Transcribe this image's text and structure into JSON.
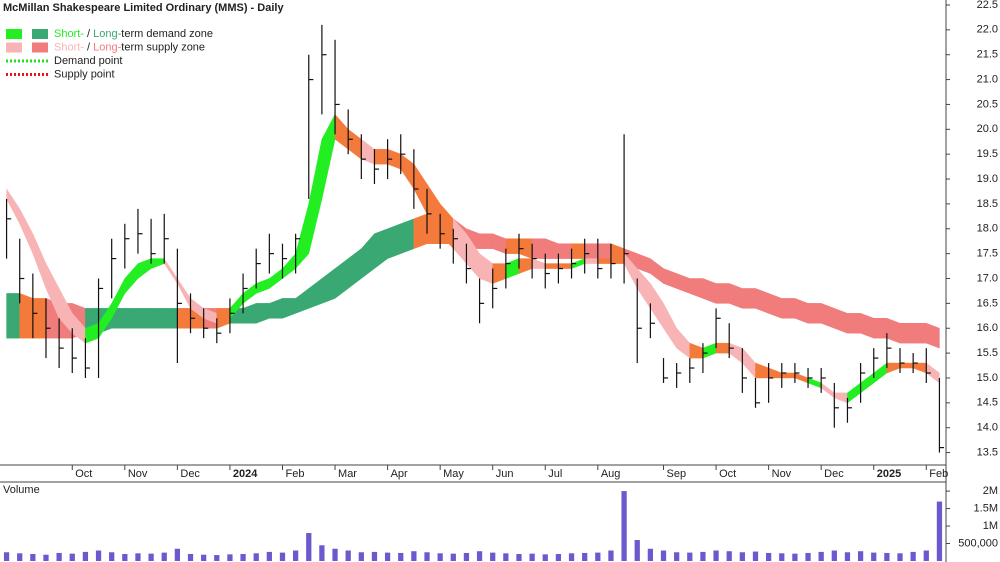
{
  "chart_data": {
    "type": "candlestick",
    "title": "McMillan Shakespeare Limited Ordinary (MMS) - Daily",
    "categories": [
      null,
      null,
      null,
      null,
      null,
      "Oct",
      null,
      null,
      null,
      "Nov",
      null,
      null,
      null,
      "Dec",
      null,
      null,
      null,
      "2024",
      null,
      null,
      null,
      "Feb",
      null,
      null,
      null,
      "Mar",
      null,
      null,
      null,
      "Apr",
      null,
      null,
      null,
      "May",
      null,
      null,
      null,
      "Jun",
      null,
      null,
      null,
      "Jul",
      null,
      null,
      null,
      "Aug",
      null,
      null,
      null,
      null,
      "Sep",
      null,
      null,
      null,
      "Oct",
      null,
      null,
      null,
      "Nov",
      null,
      null,
      null,
      "Dec",
      null,
      null,
      null,
      "2025",
      null,
      null,
      null,
      "Feb",
      null
    ],
    "high": [
      18.6,
      17.8,
      17.1,
      16.6,
      16.2,
      16.0,
      15.8,
      17.0,
      17.8,
      18.1,
      18.4,
      18.2,
      18.3,
      17.6,
      16.7,
      16.4,
      16.2,
      16.6,
      17.1,
      17.6,
      17.9,
      17.7,
      17.9,
      21.5,
      22.1,
      21.8,
      20.4,
      19.9,
      19.6,
      19.8,
      19.9,
      19.6,
      18.8,
      18.3,
      18.0,
      17.7,
      17.0,
      17.2,
      17.6,
      17.9,
      17.7,
      17.5,
      17.5,
      17.6,
      17.8,
      17.8,
      17.7,
      19.9,
      17.0,
      16.5,
      15.4,
      15.3,
      15.4,
      15.7,
      16.4,
      16.1,
      15.6,
      15.0,
      15.3,
      15.3,
      15.3,
      15.2,
      15.2,
      14.9,
      14.6,
      15.3,
      15.6,
      15.9,
      15.6,
      15.5,
      15.6,
      15.0
    ],
    "low": [
      17.4,
      16.5,
      15.8,
      15.4,
      15.2,
      15.1,
      15.0,
      15.0,
      16.6,
      17.2,
      17.5,
      17.3,
      17.3,
      15.3,
      15.9,
      15.8,
      15.7,
      15.9,
      16.3,
      16.8,
      17.1,
      17.0,
      17.1,
      18.6,
      20.3,
      19.9,
      19.5,
      19.0,
      18.9,
      19.0,
      19.1,
      18.4,
      17.9,
      17.6,
      17.3,
      16.9,
      16.1,
      16.4,
      16.8,
      17.2,
      17.0,
      16.8,
      16.9,
      17.0,
      17.1,
      17.0,
      17.0,
      16.9,
      15.3,
      15.8,
      14.9,
      14.8,
      14.9,
      15.1,
      15.6,
      15.4,
      14.7,
      14.4,
      14.5,
      14.8,
      14.9,
      14.8,
      14.7,
      14.0,
      14.1,
      14.5,
      15.0,
      15.2,
      15.1,
      15.1,
      14.9,
      13.5
    ],
    "close": [
      18.2,
      17.0,
      16.3,
      16.0,
      15.6,
      15.4,
      15.2,
      16.8,
      17.4,
      17.8,
      17.9,
      17.5,
      17.8,
      16.5,
      16.2,
      16.0,
      15.9,
      16.3,
      16.8,
      17.3,
      17.5,
      17.4,
      17.8,
      21.0,
      21.5,
      20.5,
      19.8,
      19.4,
      19.2,
      19.4,
      19.5,
      18.8,
      18.3,
      17.9,
      17.8,
      17.2,
      16.5,
      16.8,
      17.3,
      17.6,
      17.4,
      17.1,
      17.2,
      17.3,
      17.5,
      17.2,
      17.3,
      17.5,
      16.0,
      16.1,
      15.0,
      15.1,
      15.2,
      15.5,
      16.2,
      15.6,
      15.0,
      14.5,
      15.0,
      15.1,
      15.1,
      15.0,
      15.0,
      14.4,
      14.4,
      15.1,
      15.4,
      15.6,
      15.3,
      15.3,
      15.1,
      13.6
    ],
    "color": "#111111",
    "ylim": [
      13.25,
      22.6
    ],
    "yticks": [
      13.5,
      {
        "value": 14,
        "label": "14.0"
      },
      14.5,
      {
        "value": 15,
        "label": "15.0"
      },
      15.5,
      {
        "value": 16,
        "label": "16.0"
      },
      16.5,
      {
        "value": 17,
        "label": "17.0"
      },
      17.5,
      {
        "value": 18,
        "label": "18.0"
      },
      18.5,
      {
        "value": 19,
        "label": "19.0"
      },
      19.5,
      {
        "value": 20,
        "label": "20.0"
      },
      20.5,
      {
        "value": 21,
        "label": "21.0"
      },
      21.5,
      {
        "value": 22,
        "label": "22.0"
      },
      22.5
    ],
    "grid": false,
    "long_zone": {
      "upper": [
        16.7,
        16.7,
        16.6,
        16.6,
        16.5,
        16.5,
        16.4,
        16.4,
        16.4,
        16.4,
        16.4,
        16.4,
        16.4,
        16.4,
        16.4,
        16.4,
        16.4,
        16.4,
        16.4,
        16.5,
        16.5,
        16.6,
        16.6,
        16.8,
        17.0,
        17.2,
        17.4,
        17.6,
        17.9,
        18.0,
        18.1,
        18.2,
        18.3,
        18.3,
        18.2,
        18.0,
        17.9,
        17.9,
        17.8,
        17.8,
        17.8,
        17.8,
        17.7,
        17.7,
        17.7,
        17.7,
        17.7,
        17.6,
        17.5,
        17.4,
        17.2,
        17.1,
        17.0,
        17.0,
        16.9,
        16.9,
        16.8,
        16.8,
        16.7,
        16.6,
        16.6,
        16.5,
        16.5,
        16.4,
        16.3,
        16.3,
        16.2,
        16.2,
        16.1,
        16.1,
        16.1,
        16.0
      ],
      "lower": [
        15.8,
        15.8,
        15.8,
        15.8,
        15.8,
        15.8,
        15.9,
        15.9,
        16.0,
        16.0,
        16.0,
        16.0,
        16.0,
        16.0,
        16.0,
        16.0,
        16.0,
        16.1,
        16.1,
        16.1,
        16.2,
        16.2,
        16.3,
        16.4,
        16.5,
        16.6,
        16.8,
        17.0,
        17.2,
        17.4,
        17.5,
        17.6,
        17.7,
        17.7,
        17.7,
        17.6,
        17.6,
        17.6,
        17.5,
        17.5,
        17.4,
        17.4,
        17.4,
        17.4,
        17.4,
        17.4,
        17.4,
        17.3,
        17.2,
        17.1,
        16.9,
        16.8,
        16.7,
        16.6,
        16.5,
        16.5,
        16.4,
        16.4,
        16.3,
        16.2,
        16.2,
        16.1,
        16.1,
        16.0,
        15.9,
        15.9,
        15.8,
        15.8,
        15.7,
        15.7,
        15.7,
        15.6
      ],
      "demand_color": "#3aa872",
      "supply_color": "#f07c7c",
      "neutral_color": "#f47a3c"
    },
    "short_zone": {
      "upper": [
        18.8,
        18.4,
        17.9,
        17.3,
        16.8,
        16.3,
        16.0,
        16.1,
        16.5,
        17.0,
        17.3,
        17.4,
        17.4,
        17.0,
        16.6,
        16.4,
        16.3,
        16.4,
        16.7,
        16.9,
        17.0,
        17.2,
        17.5,
        18.5,
        19.8,
        20.3,
        20.0,
        19.8,
        19.6,
        19.6,
        19.5,
        19.3,
        18.9,
        18.5,
        18.2,
        17.9,
        17.5,
        17.3,
        17.3,
        17.4,
        17.4,
        17.3,
        17.3,
        17.3,
        17.4,
        17.4,
        17.4,
        17.5,
        17.2,
        16.9,
        16.5,
        16.0,
        15.7,
        15.6,
        15.7,
        15.7,
        15.6,
        15.3,
        15.2,
        15.1,
        15.1,
        15.0,
        14.9,
        14.7,
        14.7,
        14.9,
        15.1,
        15.3,
        15.3,
        15.3,
        15.3,
        15.1
      ],
      "lower": [
        18.6,
        18.1,
        17.5,
        16.8,
        16.2,
        15.9,
        15.7,
        15.8,
        16.2,
        16.7,
        17.0,
        17.2,
        17.3,
        16.9,
        16.4,
        16.2,
        16.1,
        16.2,
        16.5,
        16.7,
        16.8,
        17.0,
        17.2,
        17.5,
        18.6,
        19.8,
        19.6,
        19.4,
        19.3,
        19.3,
        19.2,
        18.8,
        18.3,
        17.9,
        17.6,
        17.3,
        17.0,
        16.9,
        17.0,
        17.1,
        17.2,
        17.2,
        17.2,
        17.2,
        17.3,
        17.3,
        17.3,
        17.3,
        16.8,
        16.4,
        16.0,
        15.6,
        15.4,
        15.4,
        15.5,
        15.5,
        15.3,
        15.0,
        15.0,
        15.0,
        15.0,
        14.9,
        14.8,
        14.6,
        14.5,
        14.7,
        14.9,
        15.1,
        15.2,
        15.2,
        15.1,
        14.9
      ],
      "demand_color": "#22ee22",
      "supply_color": "#f8b4b4",
      "neutral_color": "#f47a3c"
    },
    "legend": [
      {
        "parts": [
          "Short-",
          " / ",
          "Long-",
          "term demand zone"
        ],
        "colors": [
          "#22ee22",
          "#3aa872"
        ],
        "style": "swatch"
      },
      {
        "parts": [
          "Short-",
          " / ",
          "Long-",
          "term supply zone"
        ],
        "colors": [
          "#f8b4b4",
          "#f07c7c"
        ],
        "style": "swatch"
      },
      {
        "parts": [
          "Demand point"
        ],
        "colors": [
          "#22dd22"
        ],
        "style": "dotted"
      },
      {
        "parts": [
          "Supply point"
        ],
        "colors": [
          "#ee1111"
        ],
        "style": "dotted"
      }
    ],
    "volume": {
      "label": "Volume",
      "values": [
        250000,
        220000,
        200000,
        180000,
        230000,
        210000,
        260000,
        300000,
        250000,
        200000,
        220000,
        210000,
        240000,
        350000,
        200000,
        180000,
        170000,
        190000,
        200000,
        220000,
        260000,
        240000,
        300000,
        800000,
        450000,
        350000,
        300000,
        250000,
        260000,
        240000,
        230000,
        280000,
        250000,
        220000,
        210000,
        230000,
        280000,
        240000,
        220000,
        200000,
        210000,
        190000,
        200000,
        220000,
        230000,
        240000,
        300000,
        2000000,
        600000,
        350000,
        300000,
        250000,
        240000,
        260000,
        300000,
        280000,
        250000,
        270000,
        230000,
        220000,
        210000,
        230000,
        260000,
        300000,
        250000,
        280000,
        240000,
        230000,
        220000,
        260000,
        300000,
        1700000
      ],
      "color": "#6a5acd",
      "ylim": [
        0,
        2260000
      ],
      "yticks": [
        {
          "value": 500000,
          "label": "500,000"
        },
        {
          "value": 1000000,
          "label": "1M"
        },
        {
          "value": 1500000,
          "label": "1.5M"
        },
        {
          "value": 2000000,
          "label": "2M"
        }
      ]
    }
  }
}
